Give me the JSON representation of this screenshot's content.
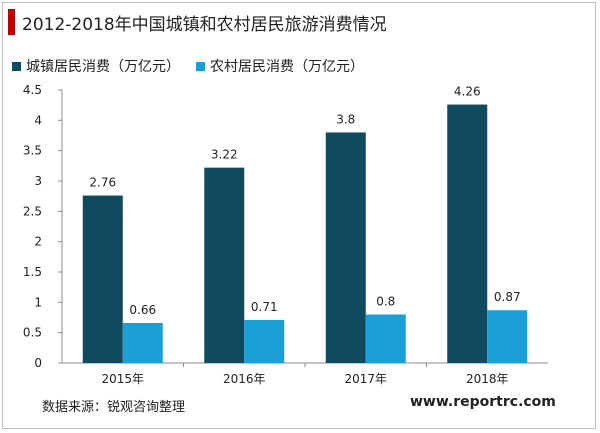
{
  "title": "2012-2018年中国城镇和农村居民旅游消费情况",
  "source": "数据来源：锐观咨询整理",
  "website": "www.reportrc.com",
  "colors": {
    "accent": "#c00000",
    "urban": "#0f4a5e",
    "rural": "#1aa0d6"
  },
  "chart_data": {
    "type": "bar",
    "categories": [
      "2015年",
      "2016年",
      "2017年",
      "2018年"
    ],
    "series": [
      {
        "name": "城镇居民消费（万亿元）",
        "values": [
          2.76,
          3.22,
          3.8,
          4.26
        ],
        "labels": [
          "2.76",
          "3.22",
          "3.8",
          "4.26"
        ]
      },
      {
        "name": "农村居民消费（万亿元）",
        "values": [
          0.66,
          0.71,
          0.8,
          0.87
        ],
        "labels": [
          "0.66",
          "0.71",
          "0.8",
          "0.87"
        ]
      }
    ],
    "ylim": [
      0,
      4.5
    ],
    "yticks": [
      0,
      0.5,
      1,
      1.5,
      2,
      2.5,
      3,
      3.5,
      4,
      4.5
    ],
    "ytick_labels": [
      "0",
      "0.5",
      "1",
      "1.5",
      "2",
      "2.5",
      "3",
      "3.5",
      "4",
      "4.5"
    ],
    "legend": "top-left",
    "grid": false
  }
}
